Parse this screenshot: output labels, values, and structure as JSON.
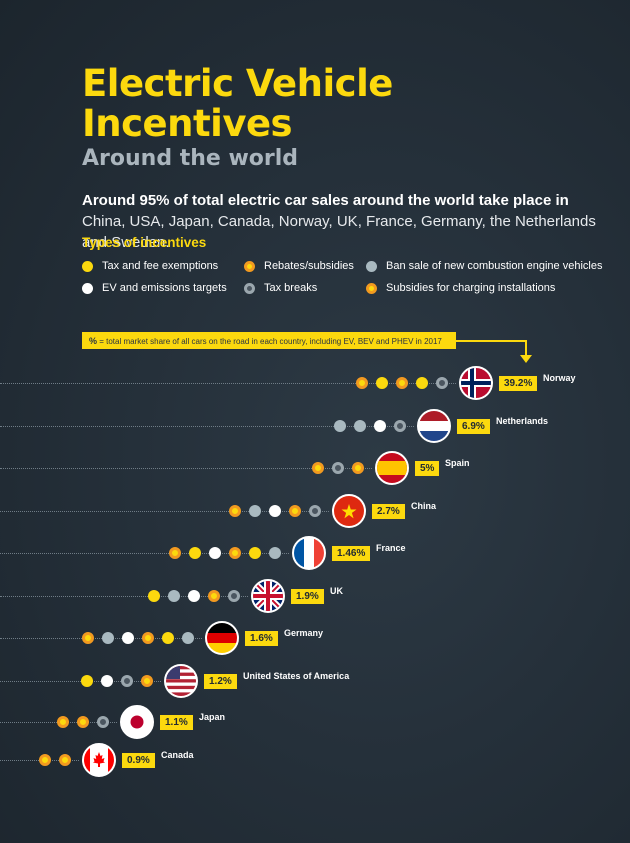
{
  "header": {
    "title": "Electric Vehicle Incentives",
    "subtitle": "Around the world",
    "intro_bold": "Around 95% of total electric car sales around the world take place in",
    "intro_rest": " China, USA, Japan, Canada, Norway, UK, France, Germany, the Netherlands and Sweden."
  },
  "legend": {
    "title": "Types of incentives",
    "items": [
      {
        "key": "tax",
        "label": "Tax and fee exemptions",
        "color": "#fcd90e"
      },
      {
        "key": "reb",
        "label": "Rebates/subsidies",
        "color": "#f29a20"
      },
      {
        "key": "ban",
        "label": "Ban sale of new combustion engine vehicles",
        "color": "#a9b9c0"
      },
      {
        "key": "ev",
        "label": "EV and emissions targets",
        "color": "#ffffff"
      },
      {
        "key": "brk",
        "label": "Tax breaks",
        "color": "#4b5660"
      },
      {
        "key": "chg",
        "label": "Subsidies for charging installations",
        "color": "#f29a20"
      }
    ]
  },
  "note": {
    "symbol": "%",
    "text": " = total market share of all cars on the road in each country, including EV, BEV and PHEV in 2017"
  },
  "chart_data": {
    "type": "table",
    "value_format": "percent",
    "countries": [
      {
        "name": "Norway",
        "share": 39.2,
        "share_label": "39.2%",
        "flag": "norway-flag",
        "incentives": [
          "reb",
          "tax",
          "chg",
          "tax",
          "brk"
        ]
      },
      {
        "name": "Netherlands",
        "share": 6.9,
        "share_label": "6.9%",
        "flag": "netherlands-flag",
        "incentives": [
          "ban",
          "ban",
          "ev",
          "brk"
        ]
      },
      {
        "name": "Spain",
        "share": 5,
        "share_label": "5%",
        "flag": "spain-flag",
        "incentives": [
          "reb",
          "brk",
          "chg"
        ]
      },
      {
        "name": "China",
        "share": 2.7,
        "share_label": "2.7%",
        "flag": "china-flag",
        "incentives": [
          "reb",
          "ban",
          "ev",
          "chg",
          "brk"
        ]
      },
      {
        "name": "France",
        "share": 1.46,
        "share_label": "1.46%",
        "flag": "france-flag",
        "incentives": [
          "reb",
          "tax",
          "ev",
          "chg",
          "tax",
          "ban"
        ]
      },
      {
        "name": "UK",
        "share": 1.9,
        "share_label": "1.9%",
        "flag": "uk-flag",
        "incentives": [
          "tax",
          "ban",
          "ev",
          "chg",
          "brk"
        ]
      },
      {
        "name": "Germany",
        "share": 1.6,
        "share_label": "1.6%",
        "flag": "germany-flag",
        "incentives": [
          "reb",
          "ban",
          "ev",
          "chg",
          "tax",
          "ban"
        ]
      },
      {
        "name": "United States of America",
        "share": 1.2,
        "share_label": "1.2%",
        "flag": "usa-flag",
        "incentives": [
          "tax",
          "ev",
          "brk",
          "reb"
        ]
      },
      {
        "name": "Japan",
        "share": 1.1,
        "share_label": "1.1%",
        "flag": "japan-flag",
        "incentives": [
          "reb",
          "chg",
          "brk"
        ]
      },
      {
        "name": "Canada",
        "share": 0.9,
        "share_label": "0.9%",
        "flag": "canada-flag",
        "incentives": [
          "reb",
          "chg"
        ]
      }
    ]
  }
}
